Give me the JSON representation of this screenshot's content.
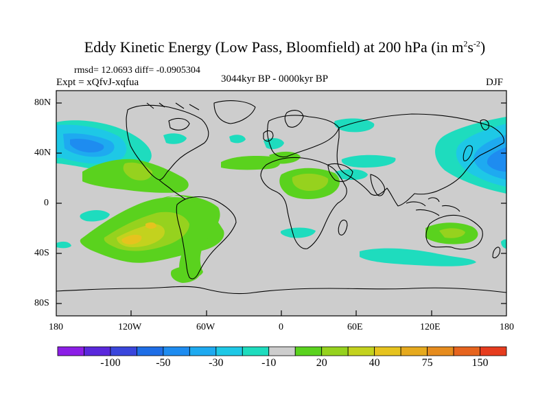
{
  "title": {
    "main": "Eddy Kinetic Energy (Low Pass, Bloomfield) at 200 hPa (in m",
    "sup1": "2",
    "s": "s",
    "sup2": "-2",
    "close": ")"
  },
  "stats": "rmsd= 12.0693 diff= -0.0905304",
  "expt": "Expt = xQfvJ-xqfua",
  "period": "3044kyr BP - 0000kyr BP",
  "season": "DJF",
  "lat_labels": [
    "80N",
    "40N",
    "0",
    "40S",
    "80S"
  ],
  "lon_labels": [
    "180",
    "120W",
    "60W",
    "0",
    "60E",
    "120E",
    "180"
  ],
  "colorbar": {
    "colors": [
      "#8c1ee6",
      "#5a28dc",
      "#3a46dc",
      "#1e6ee6",
      "#1e8cf0",
      "#1eaaf0",
      "#1ec8e6",
      "#1edcbe",
      "#cdcdcd",
      "#5ad21e",
      "#96d21e",
      "#c3d21e",
      "#e6c31e",
      "#e6aa1e",
      "#e68c1e",
      "#e6641e",
      "#e63c1e"
    ],
    "labels": [
      "-100",
      "-50",
      "-30",
      "-10",
      "20",
      "40",
      "75",
      "150"
    ]
  },
  "colors": {
    "background": "#cdcdcd",
    "coast": "#000000"
  }
}
